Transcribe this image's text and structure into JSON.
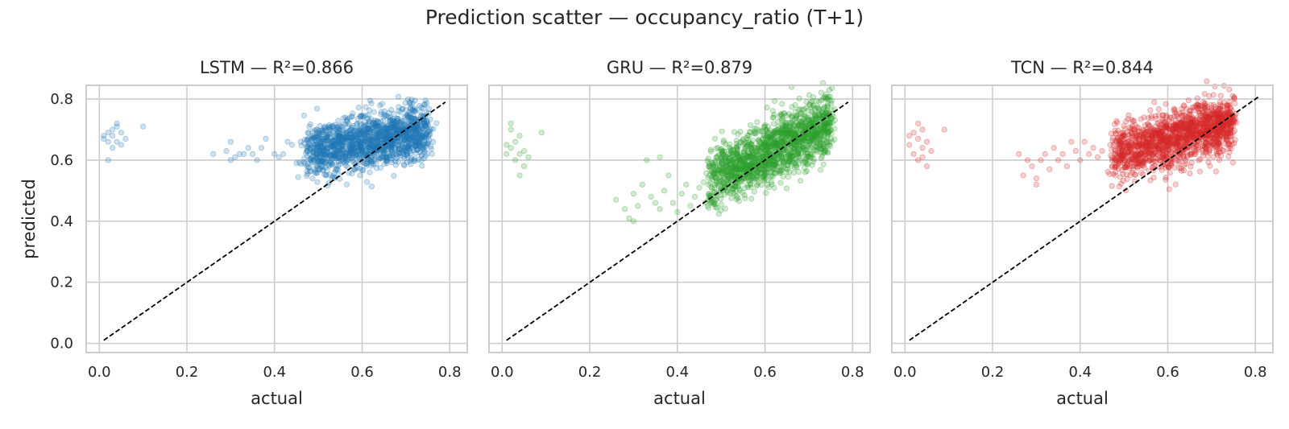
{
  "figure": {
    "title": "Prediction scatter — occupancy_ratio (T+1)"
  },
  "chart_data": [
    {
      "type": "scatter",
      "title": "LSTM — R²=0.866",
      "model": "LSTM",
      "r2": 0.866,
      "xlabel": "actual",
      "ylabel": "predicted",
      "xlim": [
        -0.03,
        0.84
      ],
      "ylim": [
        -0.03,
        0.845
      ],
      "xticks": [
        "0.0",
        "0.2",
        "0.4",
        "0.6",
        "0.8"
      ],
      "yticks": [
        "0.0",
        "0.2",
        "0.4",
        "0.6",
        "0.8"
      ],
      "grid": true,
      "color": "#1f77b4",
      "reference_line": [
        [
          0.01,
          0.01
        ],
        [
          0.79,
          0.79
        ]
      ],
      "main_cloud": {
        "x_range": [
          0.47,
          0.75
        ],
        "y_at_x_min": 0.625,
        "y_at_x_max": 0.7,
        "y_spread": 0.045
      },
      "outliers": [
        [
          0.01,
          0.67
        ],
        [
          0.02,
          0.69
        ],
        [
          0.02,
          0.66
        ],
        [
          0.03,
          0.7
        ],
        [
          0.03,
          0.68
        ],
        [
          0.04,
          0.66
        ],
        [
          0.04,
          0.71
        ],
        [
          0.05,
          0.69
        ],
        [
          0.05,
          0.65
        ],
        [
          0.02,
          0.6
        ],
        [
          0.03,
          0.64
        ],
        [
          0.1,
          0.71
        ],
        [
          0.01,
          0.68
        ],
        [
          0.04,
          0.72
        ],
        [
          0.06,
          0.67
        ],
        [
          0.26,
          0.62
        ],
        [
          0.29,
          0.63
        ],
        [
          0.3,
          0.6
        ],
        [
          0.3,
          0.66
        ],
        [
          0.32,
          0.62
        ],
        [
          0.33,
          0.62
        ],
        [
          0.35,
          0.62
        ],
        [
          0.36,
          0.6
        ],
        [
          0.37,
          0.64
        ],
        [
          0.38,
          0.67
        ],
        [
          0.4,
          0.62
        ],
        [
          0.41,
          0.61
        ],
        [
          0.42,
          0.62
        ],
        [
          0.43,
          0.66
        ],
        [
          0.44,
          0.65
        ],
        [
          0.45,
          0.59
        ],
        [
          0.31,
          0.61
        ],
        [
          0.34,
          0.64
        ]
      ]
    },
    {
      "type": "scatter",
      "title": "GRU — R²=0.879",
      "model": "GRU",
      "r2": 0.879,
      "xlabel": "actual",
      "ylabel": "",
      "xlim": [
        -0.03,
        0.84
      ],
      "ylim": [
        -0.03,
        0.845
      ],
      "xticks": [
        "0.0",
        "0.2",
        "0.4",
        "0.6",
        "0.8"
      ],
      "yticks": [],
      "grid": true,
      "color": "#2ca02c",
      "reference_line": [
        [
          0.01,
          0.01
        ],
        [
          0.79,
          0.79
        ]
      ],
      "main_cloud": {
        "x_range": [
          0.47,
          0.75
        ],
        "y_at_x_min": 0.53,
        "y_at_x_max": 0.72,
        "y_spread": 0.05
      },
      "outliers": [
        [
          0.01,
          0.62
        ],
        [
          0.02,
          0.7
        ],
        [
          0.02,
          0.64
        ],
        [
          0.03,
          0.66
        ],
        [
          0.03,
          0.6
        ],
        [
          0.04,
          0.62
        ],
        [
          0.04,
          0.68
        ],
        [
          0.05,
          0.58
        ],
        [
          0.05,
          0.63
        ],
        [
          0.06,
          0.61
        ],
        [
          0.09,
          0.69
        ],
        [
          0.02,
          0.72
        ],
        [
          0.04,
          0.55
        ],
        [
          0.01,
          0.65
        ],
        [
          0.26,
          0.47
        ],
        [
          0.28,
          0.44
        ],
        [
          0.29,
          0.41
        ],
        [
          0.3,
          0.49
        ],
        [
          0.31,
          0.45
        ],
        [
          0.32,
          0.52
        ],
        [
          0.33,
          0.6
        ],
        [
          0.34,
          0.48
        ],
        [
          0.35,
          0.46
        ],
        [
          0.36,
          0.44
        ],
        [
          0.37,
          0.5
        ],
        [
          0.38,
          0.55
        ],
        [
          0.39,
          0.46
        ],
        [
          0.4,
          0.43
        ],
        [
          0.41,
          0.49
        ],
        [
          0.42,
          0.52
        ],
        [
          0.43,
          0.45
        ],
        [
          0.44,
          0.48
        ],
        [
          0.45,
          0.51
        ],
        [
          0.36,
          0.61
        ],
        [
          0.3,
          0.4
        ]
      ]
    },
    {
      "type": "scatter",
      "title": "TCN — R²=0.844",
      "model": "TCN",
      "r2": 0.844,
      "xlabel": "actual",
      "ylabel": "",
      "xlim": [
        -0.03,
        0.84
      ],
      "ylim": [
        -0.03,
        0.845
      ],
      "xticks": [
        "0.0",
        "0.2",
        "0.4",
        "0.6",
        "0.8"
      ],
      "yticks": [],
      "grid": true,
      "color": "#d62728",
      "reference_line": [
        [
          0.01,
          0.01
        ],
        [
          0.81,
          0.81
        ]
      ],
      "main_cloud": {
        "x_range": [
          0.47,
          0.75
        ],
        "y_at_x_min": 0.62,
        "y_at_x_max": 0.72,
        "y_spread": 0.045
      },
      "outliers": [
        [
          0.01,
          0.65
        ],
        [
          0.02,
          0.69
        ],
        [
          0.02,
          0.62
        ],
        [
          0.03,
          0.67
        ],
        [
          0.03,
          0.6
        ],
        [
          0.04,
          0.64
        ],
        [
          0.04,
          0.7
        ],
        [
          0.05,
          0.66
        ],
        [
          0.05,
          0.58
        ],
        [
          0.06,
          0.63
        ],
        [
          0.09,
          0.7
        ],
        [
          0.01,
          0.68
        ],
        [
          0.04,
          0.61
        ],
        [
          0.03,
          0.72
        ],
        [
          0.26,
          0.62
        ],
        [
          0.27,
          0.55
        ],
        [
          0.29,
          0.58
        ],
        [
          0.3,
          0.52
        ],
        [
          0.31,
          0.6
        ],
        [
          0.32,
          0.62
        ],
        [
          0.33,
          0.57
        ],
        [
          0.34,
          0.64
        ],
        [
          0.35,
          0.6
        ],
        [
          0.36,
          0.62
        ],
        [
          0.37,
          0.58
        ],
        [
          0.38,
          0.66
        ],
        [
          0.39,
          0.63
        ],
        [
          0.4,
          0.6
        ],
        [
          0.41,
          0.66
        ],
        [
          0.42,
          0.62
        ],
        [
          0.43,
          0.64
        ],
        [
          0.44,
          0.61
        ],
        [
          0.45,
          0.63
        ],
        [
          0.3,
          0.54
        ],
        [
          0.28,
          0.6
        ]
      ]
    }
  ]
}
